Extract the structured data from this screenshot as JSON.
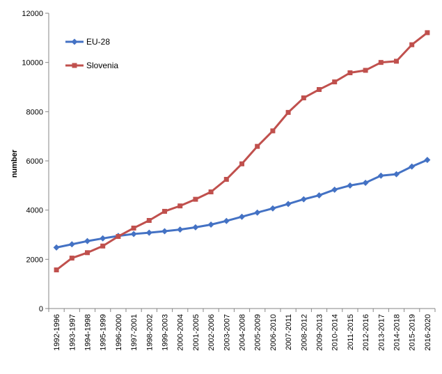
{
  "chart_data": {
    "type": "line",
    "title": "",
    "xlabel": "",
    "ylabel": "number",
    "ylim": [
      0,
      12000
    ],
    "yticks": [
      0,
      2000,
      4000,
      6000,
      8000,
      10000,
      12000
    ],
    "grid": false,
    "legend_position": "top-left",
    "categories": [
      "1992-1996",
      "1993-1997",
      "1994-1998",
      "1995-1999",
      "1996-2000",
      "1997-2001",
      "1998-2002",
      "1999-2003",
      "2000-2004",
      "2001-2005",
      "2002-2006",
      "2003-2007",
      "2004-2008",
      "2005-2009",
      "2006-2010",
      "2007-2011",
      "2008-2012",
      "2009-2013",
      "2010-2014",
      "2011-2015",
      "2012-2016",
      "2013-2017",
      "2014-2018",
      "2015-2019",
      "2016-2020"
    ],
    "series": [
      {
        "name": "EU-28",
        "color": "#4472C4",
        "marker": "diamond",
        "values": [
          2480,
          2610,
          2740,
          2850,
          2950,
          3030,
          3080,
          3140,
          3210,
          3300,
          3410,
          3560,
          3730,
          3900,
          4070,
          4250,
          4440,
          4600,
          4830,
          5000,
          5110,
          5400,
          5460,
          5770,
          6040
        ]
      },
      {
        "name": "Slovenia",
        "color": "#C0504D",
        "marker": "square",
        "values": [
          1570,
          2050,
          2270,
          2540,
          2930,
          3270,
          3580,
          3950,
          4170,
          4440,
          4740,
          5250,
          5880,
          6590,
          7220,
          7970,
          8560,
          8900,
          9210,
          9580,
          9680,
          10000,
          10050,
          10720,
          11210
        ]
      }
    ]
  }
}
